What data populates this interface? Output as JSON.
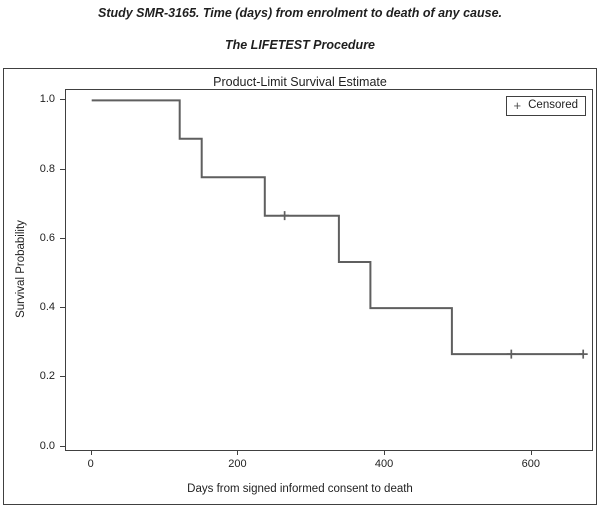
{
  "page": {
    "title_line1": "Study SMR-3165. Time (days) from enrolment to death of any cause.",
    "title_line2": "The LIFETEST Procedure"
  },
  "chart_data": {
    "type": "line",
    "subtype": "kaplan-meier-step",
    "title": "Product-Limit Survival Estimate",
    "xlabel": "Days from signed informed consent to death",
    "ylabel": "Survival Probability",
    "xlim": [
      -35,
      682
    ],
    "ylim": [
      -0.01,
      1.03
    ],
    "xticks": {
      "values": [
        0,
        200,
        400,
        600
      ],
      "labels": [
        "0",
        "200",
        "400",
        "600"
      ]
    },
    "yticks": {
      "values": [
        0.0,
        0.2,
        0.4,
        0.6,
        0.8,
        1.0
      ],
      "labels": [
        "0.0",
        "0.2",
        "0.4",
        "0.6",
        "0.8",
        "1.0"
      ]
    },
    "grid": false,
    "legend": {
      "position": "top-right",
      "marker": "+",
      "label": "Censored"
    },
    "series": [
      {
        "name": "Product-Limit Survival Estimate",
        "color": "#5f5f5f",
        "step_points": [
          [
            0,
            1.0
          ],
          [
            120,
            1.0
          ],
          [
            120,
            0.889
          ],
          [
            150,
            0.889
          ],
          [
            150,
            0.778
          ],
          [
            236,
            0.778
          ],
          [
            236,
            0.667
          ],
          [
            337,
            0.667
          ],
          [
            337,
            0.533
          ],
          [
            380,
            0.533
          ],
          [
            380,
            0.4
          ],
          [
            491,
            0.4
          ],
          [
            491,
            0.267
          ],
          [
            670,
            0.267
          ]
        ]
      }
    ],
    "censored_points": [
      [
        263,
        0.667
      ],
      [
        572,
        0.267
      ],
      [
        670,
        0.267
      ]
    ],
    "events": {
      "death_days": [
        120,
        150,
        236,
        337,
        380,
        491
      ],
      "censored_days": [
        263,
        572,
        670
      ],
      "survival_levels": [
        1.0,
        0.889,
        0.778,
        0.667,
        0.533,
        0.4,
        0.267
      ]
    }
  },
  "colors": {
    "curve": "#5f5f5f",
    "frame": "#404040",
    "text": "#1f1f1f",
    "background": "#ffffff"
  }
}
